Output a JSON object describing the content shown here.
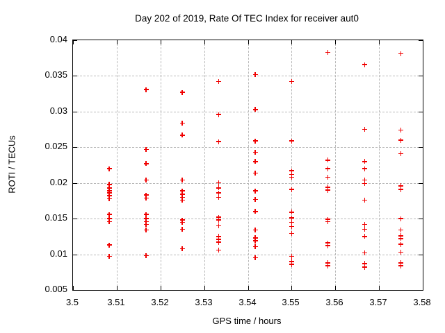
{
  "chart_data": {
    "type": "scatter",
    "title": "Day 202 of 2019, Rate Of TEC Index for receiver aut0",
    "xlabel": "GPS time / hours",
    "ylabel": "ROTI / TECUs",
    "xlim": [
      3.5,
      3.58
    ],
    "ylim": [
      0.005,
      0.04
    ],
    "x_ticks": {
      "values": [
        3.5,
        3.51,
        3.52,
        3.53,
        3.54,
        3.55,
        3.56,
        3.57,
        3.58
      ],
      "labels": [
        "3.5",
        "3.51",
        "3.52",
        "3.53",
        "3.54",
        "3.55",
        "3.56",
        "3.57",
        "3.58"
      ]
    },
    "y_ticks": {
      "values": [
        0.005,
        0.01,
        0.015,
        0.02,
        0.025,
        0.03,
        0.035,
        0.04
      ],
      "labels": [
        "0.005",
        "0.01",
        "0.015",
        "0.02",
        "0.025",
        "0.03",
        "0.035",
        "0.04"
      ]
    },
    "grid": true,
    "legend": false,
    "marker": {
      "shape": "plus",
      "color": "#f00000"
    },
    "grid_color": "#b8b8b8",
    "series": [
      {
        "name": "ROTI",
        "points": [
          [
            3.5083,
            0.022
          ],
          [
            3.5083,
            0.0198
          ],
          [
            3.5083,
            0.0193
          ],
          [
            3.5083,
            0.0189
          ],
          [
            3.5083,
            0.0186
          ],
          [
            3.5083,
            0.0182
          ],
          [
            3.5083,
            0.0178
          ],
          [
            3.5083,
            0.0156
          ],
          [
            3.5083,
            0.015
          ],
          [
            3.5083,
            0.0146
          ],
          [
            3.5083,
            0.0113
          ],
          [
            3.5083,
            0.0097
          ],
          [
            3.5167,
            0.0331
          ],
          [
            3.5167,
            0.0247
          ],
          [
            3.5167,
            0.0227
          ],
          [
            3.5167,
            0.0204
          ],
          [
            3.5167,
            0.0183
          ],
          [
            3.5167,
            0.0179
          ],
          [
            3.5167,
            0.0156
          ],
          [
            3.5167,
            0.015
          ],
          [
            3.5167,
            0.0146
          ],
          [
            3.5167,
            0.0142
          ],
          [
            3.5167,
            0.0134
          ],
          [
            3.5167,
            0.0098
          ],
          [
            3.525,
            0.0327
          ],
          [
            3.525,
            0.0284
          ],
          [
            3.525,
            0.0267
          ],
          [
            3.525,
            0.0204
          ],
          [
            3.525,
            0.0189
          ],
          [
            3.525,
            0.0184
          ],
          [
            3.525,
            0.018
          ],
          [
            3.525,
            0.0176
          ],
          [
            3.525,
            0.0148
          ],
          [
            3.525,
            0.0145
          ],
          [
            3.525,
            0.0135
          ],
          [
            3.525,
            0.0108
          ],
          [
            3.5333,
            0.0342
          ],
          [
            3.5333,
            0.0296
          ],
          [
            3.5333,
            0.0258
          ],
          [
            3.5333,
            0.02
          ],
          [
            3.5333,
            0.0193
          ],
          [
            3.5333,
            0.0186
          ],
          [
            3.5333,
            0.018
          ],
          [
            3.5333,
            0.0152
          ],
          [
            3.5333,
            0.0148
          ],
          [
            3.5333,
            0.014
          ],
          [
            3.5333,
            0.0125
          ],
          [
            3.5333,
            0.0121
          ],
          [
            3.5333,
            0.0117
          ],
          [
            3.5333,
            0.0106
          ],
          [
            3.5417,
            0.0352
          ],
          [
            3.5417,
            0.0303
          ],
          [
            3.5417,
            0.0259
          ],
          [
            3.5417,
            0.0243
          ],
          [
            3.5417,
            0.023
          ],
          [
            3.5417,
            0.0214
          ],
          [
            3.5417,
            0.0189
          ],
          [
            3.5417,
            0.0177
          ],
          [
            3.5417,
            0.016
          ],
          [
            3.5417,
            0.0134
          ],
          [
            3.5417,
            0.0123
          ],
          [
            3.5417,
            0.0119
          ],
          [
            3.5417,
            0.0111
          ],
          [
            3.5417,
            0.0095
          ],
          [
            3.55,
            0.0342
          ],
          [
            3.55,
            0.0259
          ],
          [
            3.55,
            0.0217
          ],
          [
            3.55,
            0.0212
          ],
          [
            3.55,
            0.0208
          ],
          [
            3.55,
            0.0191
          ],
          [
            3.55,
            0.0159
          ],
          [
            3.55,
            0.0151
          ],
          [
            3.55,
            0.0145
          ],
          [
            3.55,
            0.0139
          ],
          [
            3.55,
            0.0129
          ],
          [
            3.55,
            0.0097
          ],
          [
            3.55,
            0.009
          ],
          [
            3.55,
            0.0086
          ],
          [
            3.5583,
            0.0383
          ],
          [
            3.5583,
            0.0232
          ],
          [
            3.5583,
            0.022
          ],
          [
            3.5583,
            0.0208
          ],
          [
            3.5583,
            0.0194
          ],
          [
            3.5583,
            0.019
          ],
          [
            3.5583,
            0.0149
          ],
          [
            3.5583,
            0.0146
          ],
          [
            3.5583,
            0.0116
          ],
          [
            3.5583,
            0.0112
          ],
          [
            3.5583,
            0.0088
          ],
          [
            3.5583,
            0.0084
          ],
          [
            3.5667,
            0.0366
          ],
          [
            3.5667,
            0.0275
          ],
          [
            3.5667,
            0.023
          ],
          [
            3.5667,
            0.022
          ],
          [
            3.5667,
            0.0204
          ],
          [
            3.5667,
            0.0199
          ],
          [
            3.5667,
            0.0176
          ],
          [
            3.5667,
            0.0142
          ],
          [
            3.5667,
            0.0135
          ],
          [
            3.5667,
            0.0125
          ],
          [
            3.5667,
            0.0102
          ],
          [
            3.5667,
            0.0087
          ],
          [
            3.5667,
            0.0082
          ],
          [
            3.575,
            0.0381
          ],
          [
            3.575,
            0.0274
          ],
          [
            3.575,
            0.026
          ],
          [
            3.575,
            0.0241
          ],
          [
            3.575,
            0.0196
          ],
          [
            3.575,
            0.0191
          ],
          [
            3.575,
            0.015
          ],
          [
            3.575,
            0.0134
          ],
          [
            3.575,
            0.0126
          ],
          [
            3.575,
            0.0122
          ],
          [
            3.575,
            0.0114
          ],
          [
            3.575,
            0.0103
          ],
          [
            3.575,
            0.0088
          ],
          [
            3.575,
            0.0084
          ]
        ]
      }
    ]
  }
}
